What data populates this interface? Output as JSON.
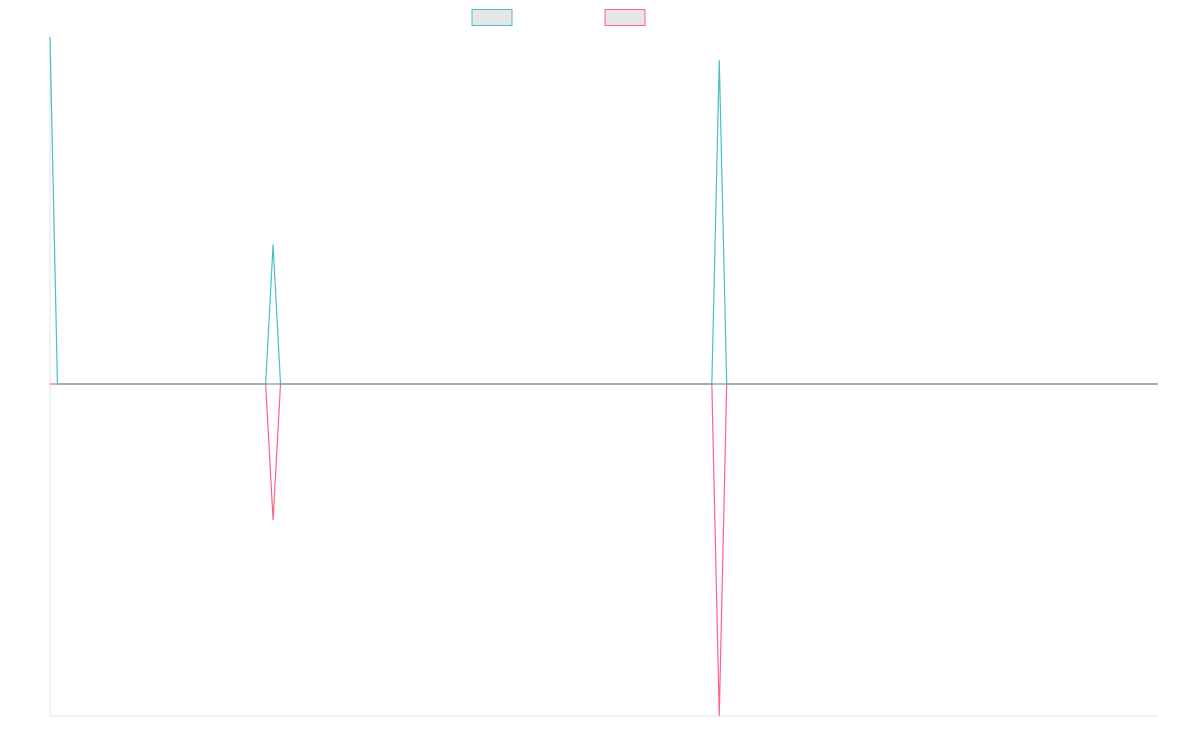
{
  "chart_data": {
    "type": "line",
    "title": "",
    "xlabel": "",
    "ylabel": "",
    "grid": false,
    "legend_position": "top-center",
    "ylim": [
      -1.0,
      1.045
    ],
    "x": [
      0,
      1,
      2,
      3,
      4,
      5,
      6,
      7,
      8,
      9,
      10,
      11,
      12,
      13,
      14,
      15,
      16,
      17,
      18,
      19,
      20,
      21,
      22,
      23,
      24,
      25,
      26,
      27,
      28,
      29,
      30,
      31,
      32,
      33,
      34,
      35,
      36,
      37,
      38,
      39,
      40,
      41,
      42,
      43,
      44,
      45,
      46,
      47,
      48,
      49,
      50,
      51,
      52,
      53,
      54,
      55,
      56,
      57,
      58,
      59,
      60,
      61,
      62,
      63,
      64,
      65,
      66,
      67,
      68,
      69,
      70,
      71,
      72,
      73,
      74,
      75,
      76,
      77,
      78,
      79,
      80,
      81,
      82,
      83,
      84,
      85,
      86,
      87,
      88,
      89,
      90,
      91,
      92,
      93,
      94,
      95,
      96,
      97,
      98,
      99,
      100,
      101,
      102,
      103,
      104,
      105,
      106,
      107,
      108,
      109,
      110,
      111,
      112,
      113,
      114,
      115,
      116,
      117,
      118,
      119,
      120,
      121,
      122,
      123,
      124,
      125,
      126,
      127,
      128,
      129,
      130,
      131,
      132,
      133,
      134,
      135,
      136,
      137,
      138,
      139,
      140,
      141,
      142,
      143,
      144,
      145,
      146,
      147,
      148,
      149
    ],
    "series": [
      {
        "color": "#4bc0c0",
        "values": [
          1.045,
          0,
          0,
          0,
          0,
          0,
          0,
          0,
          0,
          0,
          0,
          0,
          0,
          0,
          0,
          0,
          0,
          0,
          0,
          0,
          0,
          0,
          0,
          0,
          0,
          0,
          0,
          0,
          0,
          0,
          0.42,
          0,
          0,
          0,
          0,
          0,
          0,
          0,
          0,
          0,
          0,
          0,
          0,
          0,
          0,
          0,
          0,
          0,
          0,
          0,
          0,
          0,
          0,
          0,
          0,
          0,
          0,
          0,
          0,
          0,
          0,
          0,
          0,
          0,
          0,
          0,
          0,
          0,
          0,
          0,
          0,
          0,
          0,
          0,
          0,
          0,
          0,
          0,
          0,
          0,
          0,
          0,
          0,
          0,
          0,
          0,
          0,
          0,
          0,
          0,
          0.975,
          0,
          0,
          0,
          0,
          0,
          0,
          0,
          0,
          0,
          0,
          0,
          0,
          0,
          0,
          0,
          0,
          0,
          0,
          0,
          0,
          0,
          0,
          0,
          0,
          0,
          0,
          0,
          0,
          0,
          0,
          0,
          0,
          0,
          0,
          0,
          0,
          0,
          0,
          0,
          0,
          0,
          0,
          0,
          0,
          0,
          0,
          0,
          0,
          0,
          0,
          0,
          0,
          0,
          0,
          0,
          0,
          0,
          0,
          0
        ]
      },
      {
        "color": "#ff6384",
        "values": [
          0,
          0,
          0,
          0,
          0,
          0,
          0,
          0,
          0,
          0,
          0,
          0,
          0,
          0,
          0,
          0,
          0,
          0,
          0,
          0,
          0,
          0,
          0,
          0,
          0,
          0,
          0,
          0,
          0,
          0,
          -0.41,
          0,
          0,
          0,
          0,
          0,
          0,
          0,
          0,
          0,
          0,
          0,
          0,
          0,
          0,
          0,
          0,
          0,
          0,
          0,
          0,
          0,
          0,
          0,
          0,
          0,
          0,
          0,
          0,
          0,
          0,
          0,
          0,
          0,
          0,
          0,
          0,
          0,
          0,
          0,
          0,
          0,
          0,
          0,
          0,
          0,
          0,
          0,
          0,
          0,
          0,
          0,
          0,
          0,
          0,
          0,
          0,
          0,
          0,
          0,
          -1.0,
          0,
          0,
          0,
          0,
          0,
          0,
          0,
          0,
          0,
          0,
          0,
          0,
          0,
          0,
          0,
          0,
          0,
          0,
          0,
          0,
          0,
          0,
          0,
          0,
          0,
          0,
          0,
          0,
          0,
          0,
          0,
          0,
          0,
          0,
          0,
          0,
          0,
          0,
          0,
          0,
          0,
          0,
          0,
          0,
          0,
          0,
          0,
          0,
          0,
          0,
          0,
          0,
          0,
          0,
          0,
          0,
          0,
          0,
          0
        ]
      }
    ]
  }
}
